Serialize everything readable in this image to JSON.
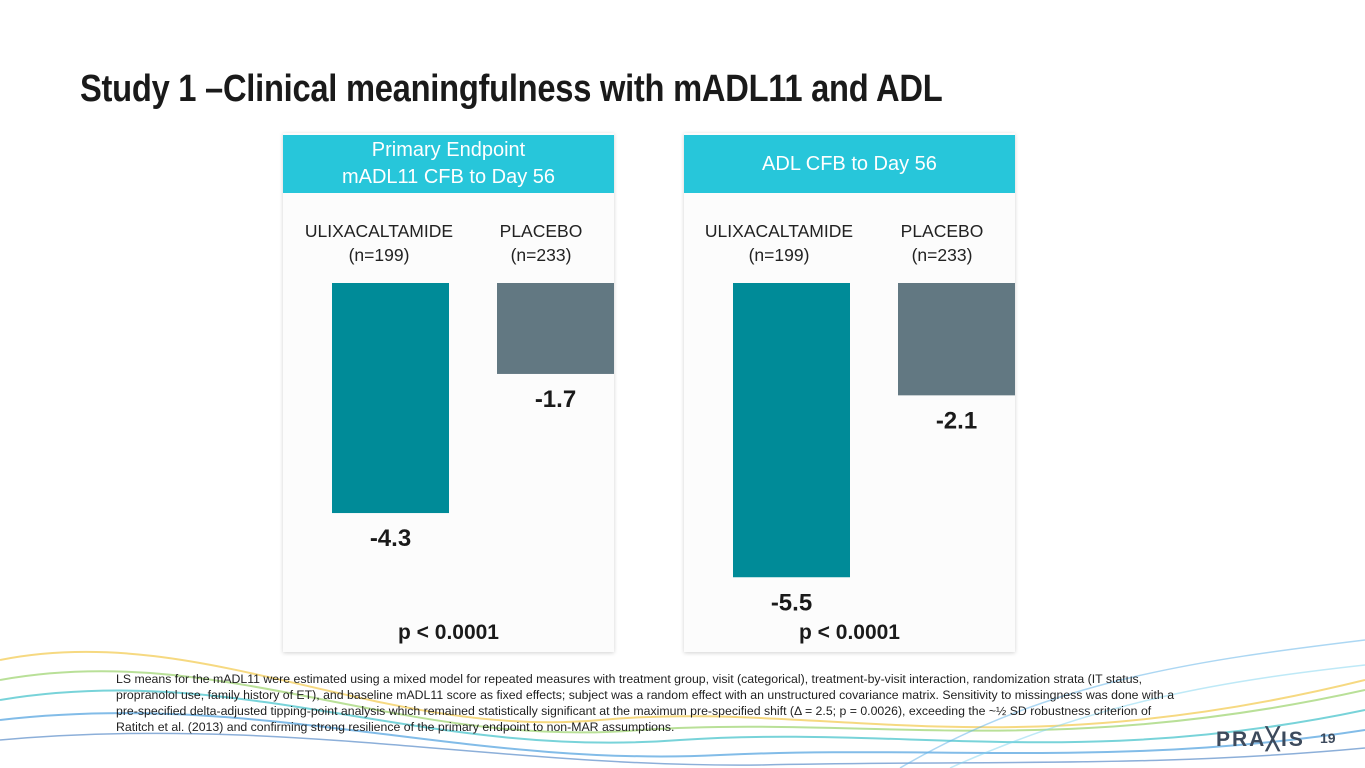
{
  "slide": {
    "title": "Study 1 –Clinical meaningfulness with mADL11 and ADL",
    "footnote": "LS means for the mADL11 were estimated using a mixed model for repeated measures with treatment group, visit (categorical), treatment-by-visit interaction, randomization strata (IT status, propranolol use, family history of ET), and baseline mADL11 score as fixed effects; subject was a random effect with an unstructured covariance matrix. Sensitivity to missingness was done with a pre-specified delta-adjusted tipping-point analysis which remained statistically significant at the maximum pre-specified shift (Δ = 2.5; p = 0.0026), exceeding the ~½ SD robustness criterion of Ratitch et al. (2013) and confirming strong resilience of the primary endpoint to non-MAR assumptions.",
    "logo_text": "PRA╳IS",
    "page_number": "19"
  },
  "colors": {
    "header_bg": "#27c6da",
    "ulixacaltamide_bar": "#008b98",
    "placebo_bar": "#627882"
  },
  "chart_data": [
    {
      "type": "bar",
      "title_lines": [
        "Primary Endpoint",
        "mADL11 CFB to Day 56"
      ],
      "categories": [
        {
          "name": "ULIXACALTAMIDE",
          "n": "(n=199)"
        },
        {
          "name": "PLACEBO",
          "n": "(n=233)"
        }
      ],
      "values": [
        -4.3,
        -1.7
      ],
      "value_labels": [
        "-4.3",
        "-1.7"
      ],
      "ylim": [
        -6,
        0
      ],
      "p_value": "p < 0.0001"
    },
    {
      "type": "bar",
      "title_lines": [
        "ADL CFB to Day 56"
      ],
      "categories": [
        {
          "name": "ULIXACALTAMIDE",
          "n": "(n=199)"
        },
        {
          "name": "PLACEBO",
          "n": "(n=233)"
        }
      ],
      "values": [
        -5.5,
        -2.1
      ],
      "value_labels": [
        "-5.5",
        "-2.1"
      ],
      "ylim": [
        -6,
        0
      ],
      "p_value": "p < 0.0001"
    }
  ]
}
